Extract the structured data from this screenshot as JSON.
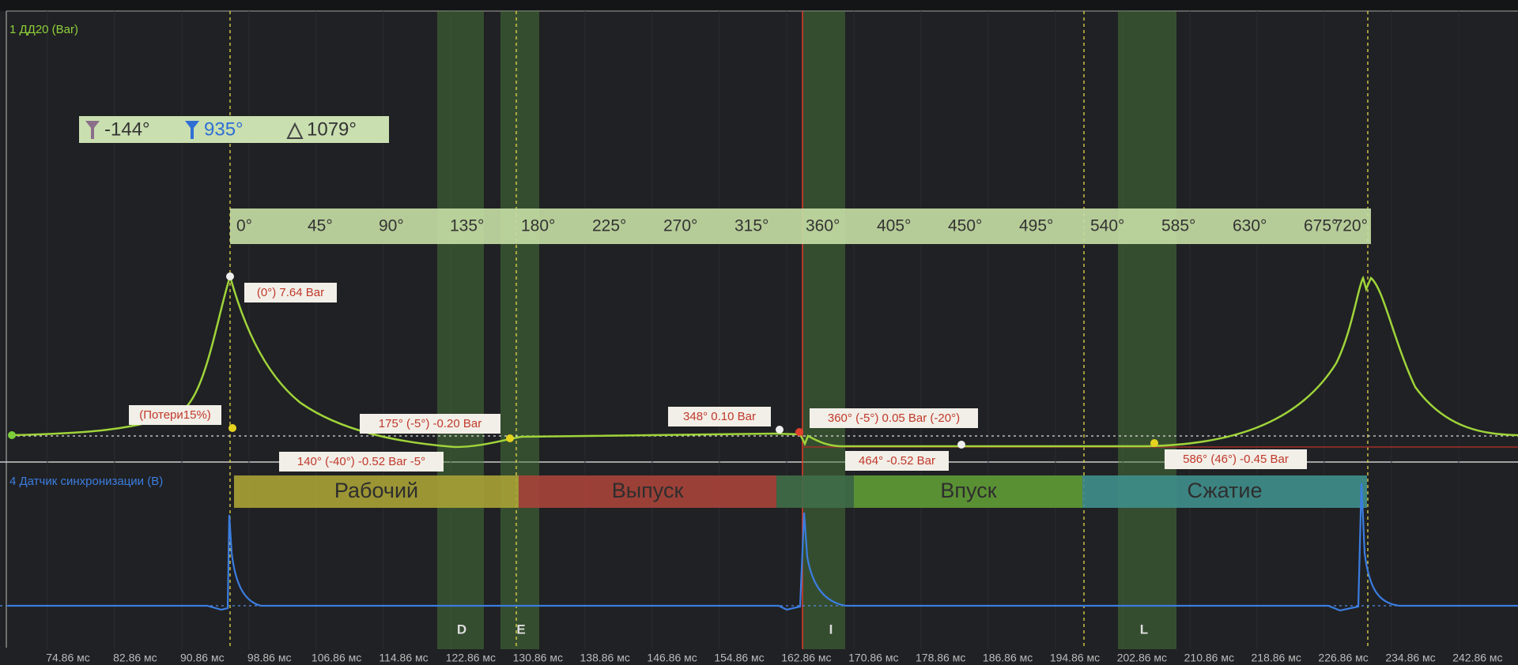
{
  "channels": {
    "pressure": "1 ДД20 (Bar)",
    "sync": "4 Датчик синхронизации (В)"
  },
  "cursors": [
    "-144°",
    "935°",
    "1079°"
  ],
  "angle_scale": [
    "0°",
    "45°",
    "90°",
    "135°",
    "180°",
    "225°",
    "270°",
    "315°",
    "360°",
    "405°",
    "450°",
    "495°",
    "540°",
    "585°",
    "630°",
    "675°",
    "720°"
  ],
  "annotations": [
    "(0°) 7.64 Bar",
    "(Потери15%)",
    "175° (-5°) -0.20 Bar",
    "140° (-40°) -0.52 Bar -5°",
    "348° 0.10 Bar",
    "360° (-5°) 0.05 Bar (-20°)",
    "464° -0.52 Bar",
    "586° (46°) -0.45 Bar"
  ],
  "phases": [
    "Рабочий",
    "Выпуск",
    "Впуск",
    "Сжатие"
  ],
  "markers": [
    "D",
    "E",
    "I",
    "L"
  ],
  "time_axis": [
    "74.86 мс",
    "82.86 мс",
    "90.86 мс",
    "98.86 мс",
    "106.86 мс",
    "114.86 мс",
    "122.86 мс",
    "130.86 мс",
    "138.86 мс",
    "146.86 мс",
    "154.86 мс",
    "162.86 мс",
    "170.86 мс",
    "178.86 мс",
    "186.86 мс",
    "194.86 мс",
    "202.86 мс",
    "210.86 мс",
    "218.86 мс",
    "226.86 мс",
    "234.86 мс",
    "242.86 мс"
  ]
}
